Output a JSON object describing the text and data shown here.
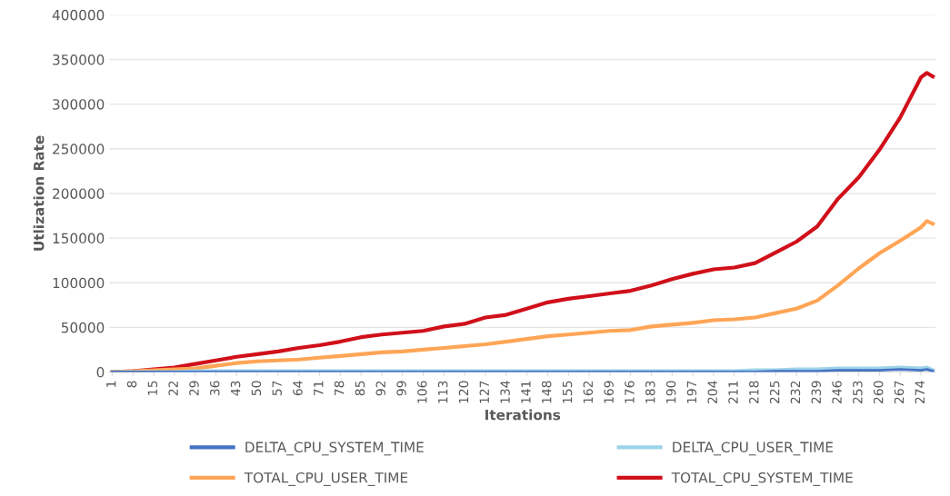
{
  "chart_data": {
    "type": "line",
    "xlabel": "Iterations",
    "ylabel": "Utlization Rate",
    "x": [
      1,
      8,
      15,
      22,
      29,
      36,
      43,
      50,
      57,
      64,
      71,
      78,
      85,
      92,
      99,
      106,
      113,
      120,
      127,
      134,
      141,
      148,
      155,
      162,
      169,
      176,
      183,
      190,
      197,
      204,
      211,
      218,
      225,
      232,
      239,
      246,
      253,
      260,
      267,
      274,
      276,
      278
    ],
    "xlim": [
      0,
      279
    ],
    "xticks": [
      1,
      8,
      15,
      22,
      29,
      36,
      43,
      50,
      57,
      64,
      71,
      78,
      85,
      92,
      99,
      106,
      113,
      120,
      127,
      134,
      141,
      148,
      155,
      162,
      169,
      176,
      183,
      190,
      197,
      204,
      211,
      218,
      225,
      232,
      239,
      246,
      253,
      260,
      267,
      274
    ],
    "ylim": [
      0,
      400000
    ],
    "yticks": [
      0,
      50000,
      100000,
      150000,
      200000,
      250000,
      300000,
      350000,
      400000
    ],
    "grid": "y",
    "legend": "bottom",
    "line_style": "solid",
    "marker": "none",
    "series": [
      {
        "name": "DELTA_CPU_SYSTEM_TIME",
        "color": "#4472c4",
        "values": [
          0,
          0,
          0,
          0,
          0,
          0,
          0,
          0,
          0,
          0,
          0,
          0,
          0,
          0,
          0,
          0,
          0,
          0,
          0,
          0,
          0,
          0,
          0,
          0,
          0,
          0,
          0,
          0,
          0,
          0,
          0,
          0,
          1000,
          1000,
          1000,
          2000,
          2000,
          2000,
          3000,
          2000,
          3000,
          1000
        ]
      },
      {
        "name": "DELTA_CPU_USER_TIME",
        "color": "#9dd3e8",
        "values": [
          0,
          0,
          0,
          0,
          1000,
          1000,
          1000,
          1000,
          1000,
          1000,
          1000,
          1000,
          1000,
          1000,
          1000,
          1000,
          1000,
          1000,
          1000,
          1000,
          1000,
          1000,
          1000,
          1000,
          1000,
          1000,
          1000,
          1000,
          1000,
          1000,
          1000,
          2000,
          2000,
          3000,
          3000,
          4000,
          4000,
          4000,
          5000,
          4000,
          5000,
          2000
        ]
      },
      {
        "name": "TOTAL_CPU_USER_TIME",
        "color": "#ffa556",
        "values": [
          0,
          1000,
          2000,
          3000,
          4000,
          7000,
          10000,
          12000,
          13000,
          14000,
          16000,
          18000,
          20000,
          22000,
          23000,
          25000,
          27000,
          29000,
          31000,
          34000,
          37000,
          40000,
          42000,
          44000,
          46000,
          47000,
          51000,
          53000,
          55000,
          58000,
          59000,
          61000,
          66000,
          71000,
          80000,
          97000,
          116000,
          133000,
          147000,
          162000,
          169000,
          166000
        ]
      },
      {
        "name": "TOTAL_CPU_SYSTEM_TIME",
        "color": "#d0101a",
        "values": [
          0,
          1000,
          3000,
          5000,
          9000,
          13000,
          17000,
          20000,
          23000,
          27000,
          30000,
          34000,
          39000,
          42000,
          44000,
          46000,
          51000,
          54000,
          61000,
          64000,
          71000,
          78000,
          82000,
          85000,
          88000,
          91000,
          97000,
          104000,
          110000,
          115000,
          117000,
          122000,
          134000,
          146000,
          163000,
          194000,
          218000,
          249000,
          285000,
          330000,
          335000,
          331000
        ]
      }
    ]
  }
}
